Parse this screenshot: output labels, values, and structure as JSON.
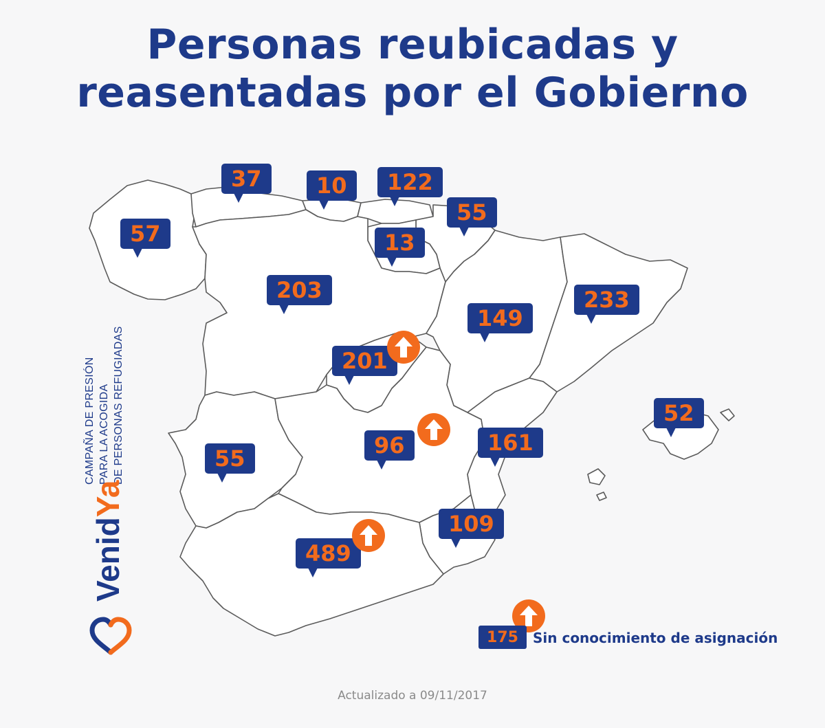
{
  "title_line1": "Personas reubicadas y",
  "title_line2": "reasentadas por el Gobierno",
  "campaign": {
    "line1": "CAMPAÑA DE PRESIÓN",
    "line2": "PARA LA ACOGIDA",
    "line3": "DE PERSONAS REFUGIADAS"
  },
  "brand": {
    "part1": "Venid",
    "part2": "Ya"
  },
  "regions": [
    {
      "id": "galicia",
      "value": "57",
      "arrow": false
    },
    {
      "id": "asturias",
      "value": "37",
      "arrow": false
    },
    {
      "id": "cantabria",
      "value": "10",
      "arrow": false
    },
    {
      "id": "pais-vasco",
      "value": "122",
      "arrow": false
    },
    {
      "id": "navarra",
      "value": "55",
      "arrow": false
    },
    {
      "id": "la-rioja",
      "value": "13",
      "arrow": false
    },
    {
      "id": "castilla-y-leon",
      "value": "203",
      "arrow": false
    },
    {
      "id": "aragon",
      "value": "149",
      "arrow": false
    },
    {
      "id": "cataluna",
      "value": "233",
      "arrow": false
    },
    {
      "id": "madrid",
      "value": "201",
      "arrow": true
    },
    {
      "id": "castilla-la-mancha",
      "value": "96",
      "arrow": true
    },
    {
      "id": "comunidad-valenciana",
      "value": "161",
      "arrow": false
    },
    {
      "id": "baleares",
      "value": "52",
      "arrow": false
    },
    {
      "id": "extremadura",
      "value": "55",
      "arrow": false
    },
    {
      "id": "murcia",
      "value": "109",
      "arrow": false
    },
    {
      "id": "andalucia",
      "value": "489",
      "arrow": true
    }
  ],
  "legend": {
    "value": "175",
    "label": "Sin conocimiento de asignación"
  },
  "footer": "Actualizado a 09/11/2017",
  "colors": {
    "navy": "#1e3a8a",
    "orange": "#f26b1d",
    "background": "#f7f7f8"
  }
}
